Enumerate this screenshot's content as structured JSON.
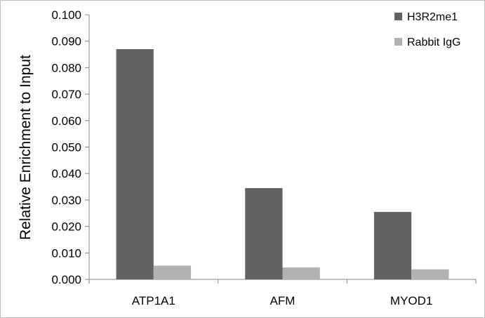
{
  "chart_data": {
    "type": "bar",
    "title": "",
    "ylabel": "Relative Enrichment to Input",
    "xlabel": "",
    "categories": [
      "ATP1A1",
      "AFM",
      "MYOD1"
    ],
    "series": [
      {
        "name": "H3R2me1",
        "values": [
          0.087,
          0.0345,
          0.0255
        ],
        "color": "#636363"
      },
      {
        "name": "Rabbit IgG",
        "values": [
          0.0052,
          0.0045,
          0.0038
        ],
        "color": "#b2b2b2"
      }
    ],
    "ylim": [
      0,
      0.1
    ],
    "yticks": [
      "0.000",
      "0.010",
      "0.020",
      "0.030",
      "0.040",
      "0.050",
      "0.060",
      "0.070",
      "0.080",
      "0.090",
      "0.100"
    ],
    "grid": false,
    "legend_position": "top-right"
  }
}
